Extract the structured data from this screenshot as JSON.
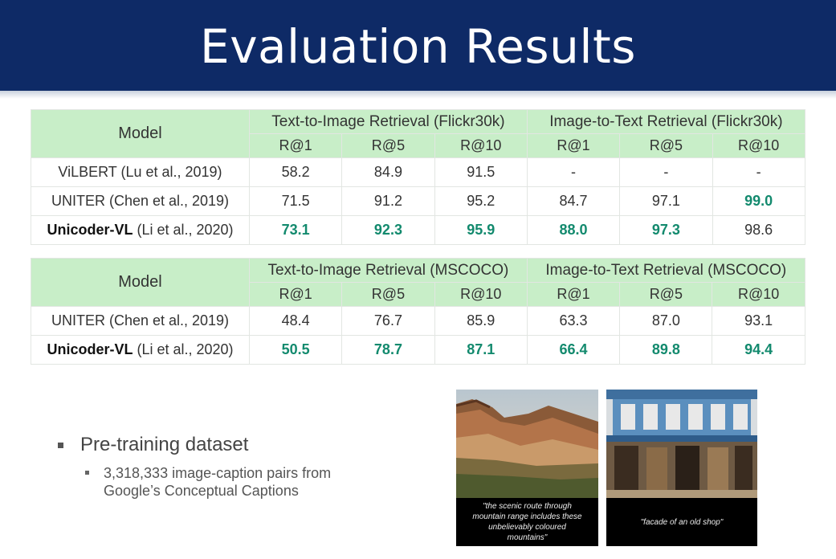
{
  "title": "Evaluation Results",
  "flickr": {
    "model_header": "Model",
    "groups": [
      "Text-to-Image Retrieval (Flickr30k)",
      "Image-to-Text Retrieval (Flickr30k)"
    ],
    "metrics": [
      "R@1",
      "R@5",
      "R@10",
      "R@1",
      "R@5",
      "R@10"
    ],
    "rows": [
      {
        "model": "ViLBERT",
        "cite": " (Lu et al., 2019)",
        "values": [
          "58.2",
          "84.9",
          "91.5",
          "-",
          "-",
          "-"
        ],
        "best": [
          false,
          false,
          false,
          false,
          false,
          false
        ],
        "highlight": false
      },
      {
        "model": "UNITER",
        "cite": " (Chen et al., 2019)",
        "values": [
          "71.5",
          "91.2",
          "95.2",
          "84.7",
          "97.1",
          "99.0"
        ],
        "best": [
          false,
          false,
          false,
          false,
          false,
          true
        ],
        "highlight": false
      },
      {
        "model": "Unicoder-VL",
        "cite": " (Li et al., 2020)",
        "values": [
          "73.1",
          "92.3",
          "95.9",
          "88.0",
          "97.3",
          "98.6"
        ],
        "best": [
          true,
          true,
          true,
          true,
          true,
          false
        ],
        "highlight": true
      }
    ]
  },
  "mscoco": {
    "model_header": "Model",
    "groups": [
      "Text-to-Image Retrieval (MSCOCO)",
      "Image-to-Text Retrieval (MSCOCO)"
    ],
    "metrics": [
      "R@1",
      "R@5",
      "R@10",
      "R@1",
      "R@5",
      "R@10"
    ],
    "rows": [
      {
        "model": "UNITER",
        "cite": " (Chen et al., 2019)",
        "values": [
          "48.4",
          "76.7",
          "85.9",
          "63.3",
          "87.0",
          "93.1"
        ],
        "best": [
          false,
          false,
          false,
          false,
          false,
          false
        ],
        "highlight": false
      },
      {
        "model": "Unicoder-VL",
        "cite": " (Li et al., 2020)",
        "values": [
          "50.5",
          "78.7",
          "87.1",
          "66.4",
          "89.8",
          "94.4"
        ],
        "best": [
          true,
          true,
          true,
          true,
          true,
          true
        ],
        "highlight": true
      }
    ]
  },
  "bullets": {
    "main": "Pre-training dataset",
    "sub_line1": "3,318,333 image-caption pairs from",
    "sub_line2": "Google’s Conceptual Captions"
  },
  "images": [
    {
      "caption_l1": "\"the scenic route through",
      "caption_l2": "mountain range includes these",
      "caption_l3": "unbelievably coloured mountains\""
    },
    {
      "caption_l1": "\"facade of an old shop\"",
      "caption_l2": "",
      "caption_l3": ""
    }
  ]
}
